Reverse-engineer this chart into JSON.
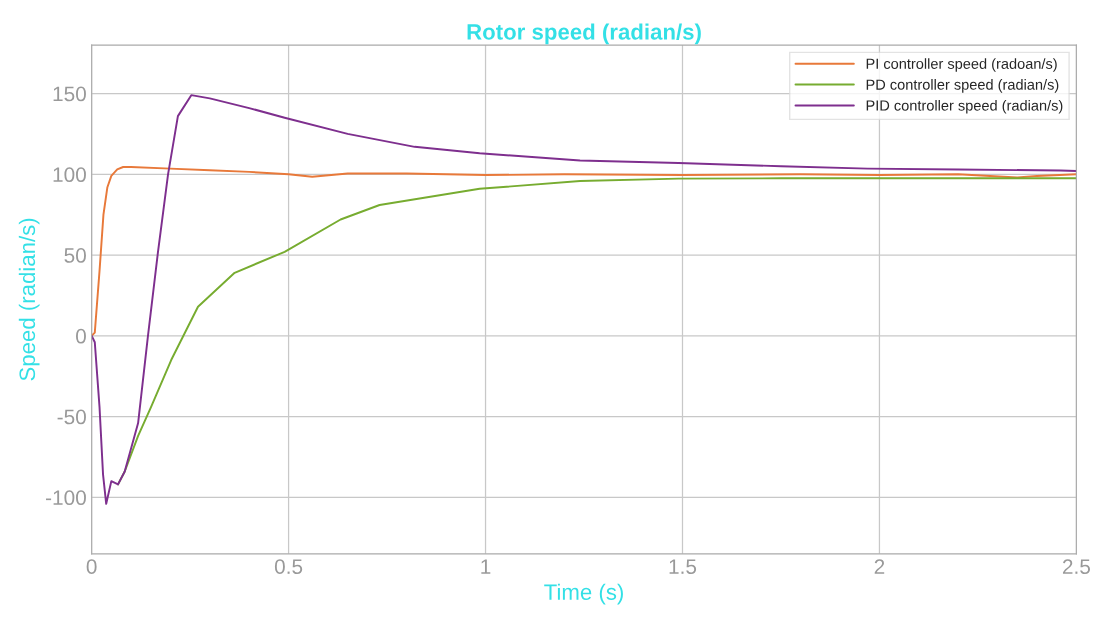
{
  "chart_data": {
    "type": "line",
    "title": "Rotor speed (radian/s)",
    "xlabel": "Time (s)",
    "ylabel": "Speed (radian/s)",
    "xlim": [
      0,
      2.5
    ],
    "ylim": [
      -135,
      180
    ],
    "xticks": [
      0,
      0.5,
      1,
      1.5,
      2,
      2.5
    ],
    "yticks": [
      -100,
      -50,
      0,
      50,
      100,
      150
    ],
    "grid": true,
    "legend": "top right",
    "series": [
      {
        "name": "PI controller speed (radoan/s)",
        "color": "#e8793a",
        "x": [
          0,
          0.008,
          0.02,
          0.03,
          0.04,
          0.05,
          0.065,
          0.08,
          0.1,
          0.2,
          0.3,
          0.4,
          0.5,
          0.56,
          0.65,
          0.8,
          1.0,
          1.2,
          1.5,
          1.8,
          2.0,
          2.2,
          2.35,
          2.4,
          2.5
        ],
        "values": [
          0,
          2,
          40,
          75,
          92,
          99,
          103,
          104.5,
          104.5,
          103.5,
          102.5,
          101.5,
          100,
          98.5,
          100.5,
          100.5,
          99.5,
          100,
          99.5,
          100,
          99.5,
          100,
          98,
          99,
          100
        ]
      },
      {
        "name": "PD controller speed (radian/s)",
        "color": "#77ac30",
        "x": [
          0.067,
          0.084,
          0.118,
          0.151,
          0.202,
          0.27,
          0.363,
          0.49,
          0.632,
          0.731,
          0.985,
          1.24,
          1.49,
          1.75,
          2.0,
          2.5
        ],
        "values": [
          -92,
          -84,
          -62,
          -44,
          -15,
          18,
          39,
          52,
          72,
          81,
          91,
          95.8,
          97.3,
          97.5,
          97.5,
          97.5
        ]
      },
      {
        "name": "PID controller speed (radian/s)",
        "color": "#7e2f8e",
        "x": [
          0,
          0.008,
          0.02,
          0.029,
          0.037,
          0.05,
          0.067,
          0.084,
          0.118,
          0.143,
          0.168,
          0.194,
          0.219,
          0.253,
          0.3,
          0.4,
          0.49,
          0.65,
          0.82,
          0.985,
          1.24,
          1.49,
          1.75,
          1.97,
          2.2,
          2.46,
          2.5
        ],
        "values": [
          0,
          -4,
          -44,
          -86,
          -104,
          -90,
          -92,
          -84,
          -54,
          0,
          51,
          100,
          136,
          149,
          147,
          141,
          135,
          125,
          117,
          113,
          108.5,
          107,
          105,
          103.5,
          103,
          102.3,
          102
        ]
      }
    ]
  }
}
